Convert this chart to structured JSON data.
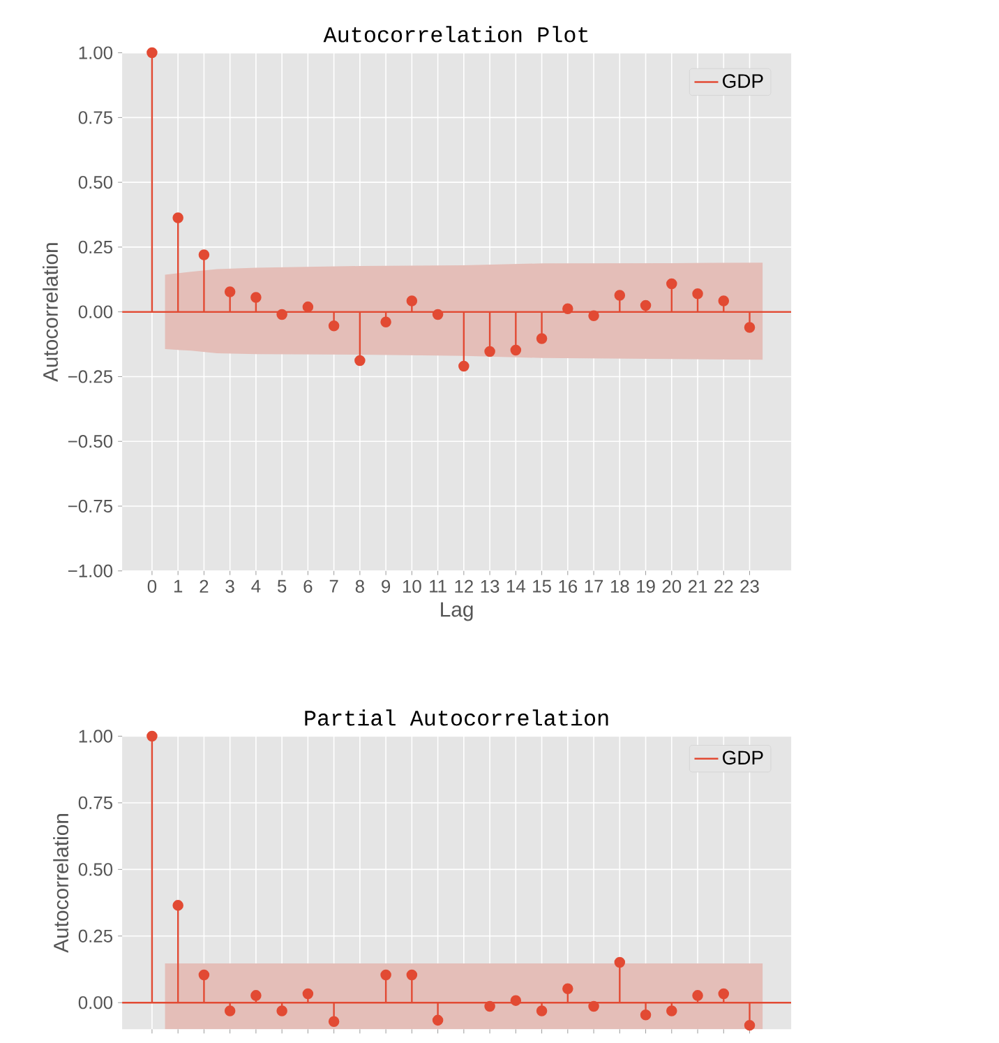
{
  "chart_data": [
    {
      "type": "lollipop",
      "title": "Autocorrelation Plot",
      "xlabel": "Lag",
      "ylabel": "Autocorrelation",
      "x": [
        0,
        1,
        2,
        3,
        4,
        5,
        6,
        7,
        8,
        9,
        10,
        11,
        12,
        13,
        14,
        15,
        16,
        17,
        18,
        19,
        20,
        21,
        22,
        23
      ],
      "xlim": [
        -1.15,
        24.6
      ],
      "xticks": [
        0,
        1,
        2,
        3,
        4,
        5,
        6,
        7,
        8,
        9,
        10,
        11,
        12,
        13,
        14,
        15,
        16,
        17,
        18,
        19,
        20,
        21,
        22,
        23
      ],
      "ylim": [
        -1,
        1
      ],
      "yticks": [
        {
          "value": -1,
          "label": "−1.00"
        },
        {
          "value": -0.75,
          "label": "−0.75"
        },
        {
          "value": -0.5,
          "label": "−0.50"
        },
        {
          "value": -0.25,
          "label": "−0.25"
        },
        {
          "value": 0,
          "label": "0.00"
        },
        {
          "value": 0.25,
          "label": "0.25"
        },
        {
          "value": 0.5,
          "label": "0.50"
        },
        {
          "value": 0.75,
          "label": "0.75"
        },
        {
          "value": 1,
          "label": "1.00"
        }
      ],
      "grid": true,
      "legend": "top right",
      "marker": "circle",
      "series": [
        {
          "name": "GDP",
          "color": "#e24a33",
          "values": [
            1.0,
            0.363,
            0.22,
            0.077,
            0.056,
            -0.01,
            0.019,
            -0.054,
            -0.188,
            -0.039,
            0.042,
            -0.01,
            -0.21,
            -0.153,
            -0.148,
            -0.103,
            0.012,
            -0.015,
            0.064,
            0.025,
            0.108,
            0.07,
            0.042,
            -0.06
          ]
        },
        {
          "type": "line",
          "marker": "none",
          "color": "#e24a33",
          "x": [
            -1.15,
            0.5,
            1.5,
            2.5,
            4,
            8,
            12,
            15,
            20,
            23.5,
            24.6
          ],
          "values": [
            0,
            0,
            0,
            0,
            0,
            0,
            0,
            0,
            0,
            0,
            0
          ],
          "lower": [
            null,
            -0.144,
            -0.15,
            -0.16,
            -0.163,
            -0.165,
            -0.17,
            -0.178,
            -0.182,
            -0.185,
            null
          ],
          "upper": [
            null,
            0.143,
            0.155,
            0.165,
            0.17,
            0.177,
            0.18,
            0.187,
            0.188,
            0.19,
            null
          ]
        }
      ]
    },
    {
      "type": "lollipop",
      "title": "Partial Autocorrelation",
      "ylabel": "Autocorrelation",
      "x": [
        0,
        1,
        2,
        3,
        4,
        5,
        6,
        7,
        8,
        9,
        10,
        11,
        12,
        13,
        14,
        15,
        16,
        17,
        18,
        19,
        20,
        21,
        22,
        23
      ],
      "xlim": [
        -1.15,
        24.6
      ],
      "xticks": [
        0,
        1,
        2,
        3,
        4,
        5,
        6,
        7,
        8,
        9,
        10,
        11,
        12,
        13,
        14,
        15,
        16,
        17,
        18,
        19,
        20,
        21,
        22,
        23
      ],
      "ylim": [
        -0.1,
        1
      ],
      "yticks": [
        {
          "value": 0,
          "label": "0.00"
        },
        {
          "value": 0.25,
          "label": "0.25"
        },
        {
          "value": 0.5,
          "label": "0.50"
        },
        {
          "value": 0.75,
          "label": "0.75"
        },
        {
          "value": 1,
          "label": "1.00"
        }
      ],
      "tick_labels": "y",
      "grid": true,
      "legend": "top right",
      "marker": "circle",
      "series": [
        {
          "name": "GDP",
          "color": "#e24a33",
          "values": [
            1.0,
            0.365,
            0.104,
            -0.031,
            0.027,
            -0.031,
            0.033,
            -0.071,
            null,
            0.104,
            0.104,
            -0.066,
            null,
            -0.014,
            0.008,
            -0.031,
            0.052,
            -0.014,
            0.151,
            -0.046,
            -0.031,
            0.027,
            0.033,
            -0.085
          ]
        },
        {
          "type": "line",
          "marker": "none",
          "color": "#e24a33",
          "x": [
            -1.15,
            0.5,
            23.5,
            24.6
          ],
          "values": [
            0,
            0,
            0,
            0
          ],
          "lower": [
            null,
            -0.1,
            -0.1,
            null
          ],
          "upper": [
            null,
            0.147,
            0.147,
            null
          ]
        }
      ]
    }
  ]
}
